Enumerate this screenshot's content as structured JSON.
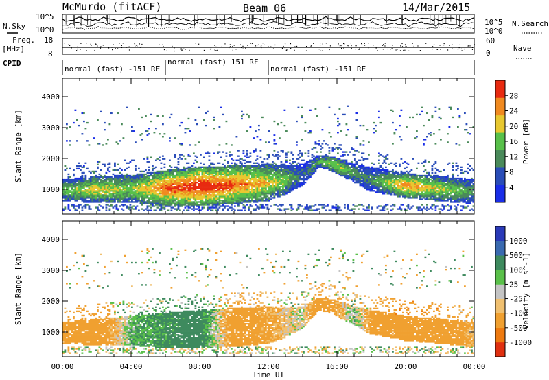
{
  "header": {
    "radar": "McMurdo (fitACF)",
    "beam": "Beam 06",
    "date": "14/Mar/2015"
  },
  "top_panels": {
    "nsky_label": "N.Sky",
    "nsearch_label": "N.Search",
    "noise_ticks_left": [
      "10^5",
      "10^0"
    ],
    "noise_ticks_right": [
      "10^5",
      "10^0"
    ],
    "freq_label": "Freq.",
    "freq_unit": "[MHz]",
    "freq_ticks": [
      "18",
      "8"
    ],
    "nave_label": "Nave",
    "nave_ticks": [
      "60",
      "0"
    ],
    "cpid_label": "CPID",
    "cpid_segments": [
      {
        "label": "normal (fast) -151 RF",
        "start": 0,
        "end": 6
      },
      {
        "label": "normal (fast) 151 RF",
        "start": 6,
        "end": 12
      },
      {
        "label": "normal (fast) -151 RF",
        "start": 12,
        "end": 24
      }
    ]
  },
  "colors": {
    "power_scale": [
      "#1a2ee8",
      "#2a4db8",
      "#4a8a5a",
      "#58c04a",
      "#e8c830",
      "#f08a20",
      "#e82a10"
    ],
    "velocity_scale": [
      "#2a3ab8",
      "#3a6ab0",
      "#3e8a5e",
      "#5ac04a",
      "#c4c4c4",
      "#f0c070",
      "#f0a030",
      "#ee7a10",
      "#e03010"
    ]
  },
  "power_colorbar": {
    "label": "Power [dB]",
    "ticks": [
      "28",
      "24",
      "20",
      "16",
      "12",
      "8",
      "4"
    ]
  },
  "velocity_colorbar": {
    "label": "Velocity [m s^-1]",
    "ticks": [
      "1000",
      "500",
      "100",
      "25",
      "-25",
      "-100",
      "-500",
      "-1000"
    ]
  },
  "chart_data": [
    {
      "type": "heatmap",
      "name": "power",
      "ylabel": "Slant Range [km]",
      "xlabel": "Time UT",
      "x_ticks": [
        "00:00",
        "04:00",
        "08:00",
        "12:00",
        "16:00",
        "20:00",
        "00:00"
      ],
      "y_ticks": [
        "4000",
        "3000",
        "2000",
        "1000"
      ],
      "xlim": [
        0,
        24
      ],
      "ylim": [
        200,
        4600
      ],
      "z_range_db": [
        0,
        32
      ],
      "main_echo_band": [
        {
          "t": 0,
          "lo": 600,
          "hi": 1300,
          "peak": 14
        },
        {
          "t": 2,
          "lo": 550,
          "hi": 1400,
          "peak": 20
        },
        {
          "t": 4,
          "lo": 550,
          "hi": 1450,
          "peak": 16
        },
        {
          "t": 6,
          "lo": 450,
          "hi": 1600,
          "peak": 26
        },
        {
          "t": 8,
          "lo": 450,
          "hi": 1700,
          "peak": 30
        },
        {
          "t": 10,
          "lo": 500,
          "hi": 1750,
          "peak": 26
        },
        {
          "t": 12,
          "lo": 600,
          "hi": 1800,
          "peak": 20
        },
        {
          "t": 13,
          "lo": 800,
          "hi": 1750,
          "peak": 16
        },
        {
          "t": 14,
          "lo": 1100,
          "hi": 1800,
          "peak": 8
        },
        {
          "t": 15,
          "lo": 1700,
          "hi": 2100,
          "peak": 14
        },
        {
          "t": 16,
          "lo": 1500,
          "hi": 2000,
          "peak": 18
        },
        {
          "t": 17,
          "lo": 1200,
          "hi": 1800,
          "peak": 12
        },
        {
          "t": 18,
          "lo": 900,
          "hi": 1700,
          "peak": 10
        },
        {
          "t": 20,
          "lo": 700,
          "hi": 1500,
          "peak": 24
        },
        {
          "t": 22,
          "lo": 600,
          "hi": 1400,
          "peak": 18
        },
        {
          "t": 24,
          "lo": 500,
          "hi": 1300,
          "peak": 12
        }
      ]
    },
    {
      "type": "heatmap",
      "name": "velocity",
      "ylabel": "Slant Range [km]",
      "xlabel": "Time UT",
      "x_ticks": [
        "00:00",
        "04:00",
        "08:00",
        "12:00",
        "16:00",
        "20:00",
        "00:00"
      ],
      "y_ticks": [
        "4000",
        "3000",
        "2000",
        "1000"
      ],
      "xlim": [
        0,
        24
      ],
      "ylim": [
        200,
        4600
      ],
      "v_range": [
        -1000,
        1000
      ],
      "main_echo_band": [
        {
          "t": 0,
          "lo": 600,
          "hi": 1300,
          "v": -250
        },
        {
          "t": 2,
          "lo": 550,
          "hi": 1400,
          "v": -300
        },
        {
          "t": 4,
          "lo": 550,
          "hi": 1500,
          "v": 80
        },
        {
          "t": 6,
          "lo": 450,
          "hi": 1600,
          "v": 150
        },
        {
          "t": 8,
          "lo": 450,
          "hi": 1700,
          "v": 200
        },
        {
          "t": 10,
          "lo": 500,
          "hi": 1750,
          "v": -200
        },
        {
          "t": 12,
          "lo": 600,
          "hi": 1800,
          "v": -150
        },
        {
          "t": 13,
          "lo": 800,
          "hi": 1750,
          "v": -60
        },
        {
          "t": 14,
          "lo": 1100,
          "hi": 1800,
          "v": 0
        },
        {
          "t": 15,
          "lo": 1700,
          "hi": 2100,
          "v": -250
        },
        {
          "t": 16,
          "lo": 1500,
          "hi": 2000,
          "v": -150
        },
        {
          "t": 17,
          "lo": 1200,
          "hi": 1800,
          "v": 60
        },
        {
          "t": 18,
          "lo": 900,
          "hi": 1700,
          "v": -150
        },
        {
          "t": 20,
          "lo": 700,
          "hi": 1500,
          "v": -400
        },
        {
          "t": 22,
          "lo": 600,
          "hi": 1400,
          "v": -300
        },
        {
          "t": 24,
          "lo": 500,
          "hi": 1300,
          "v": -100
        }
      ]
    }
  ]
}
